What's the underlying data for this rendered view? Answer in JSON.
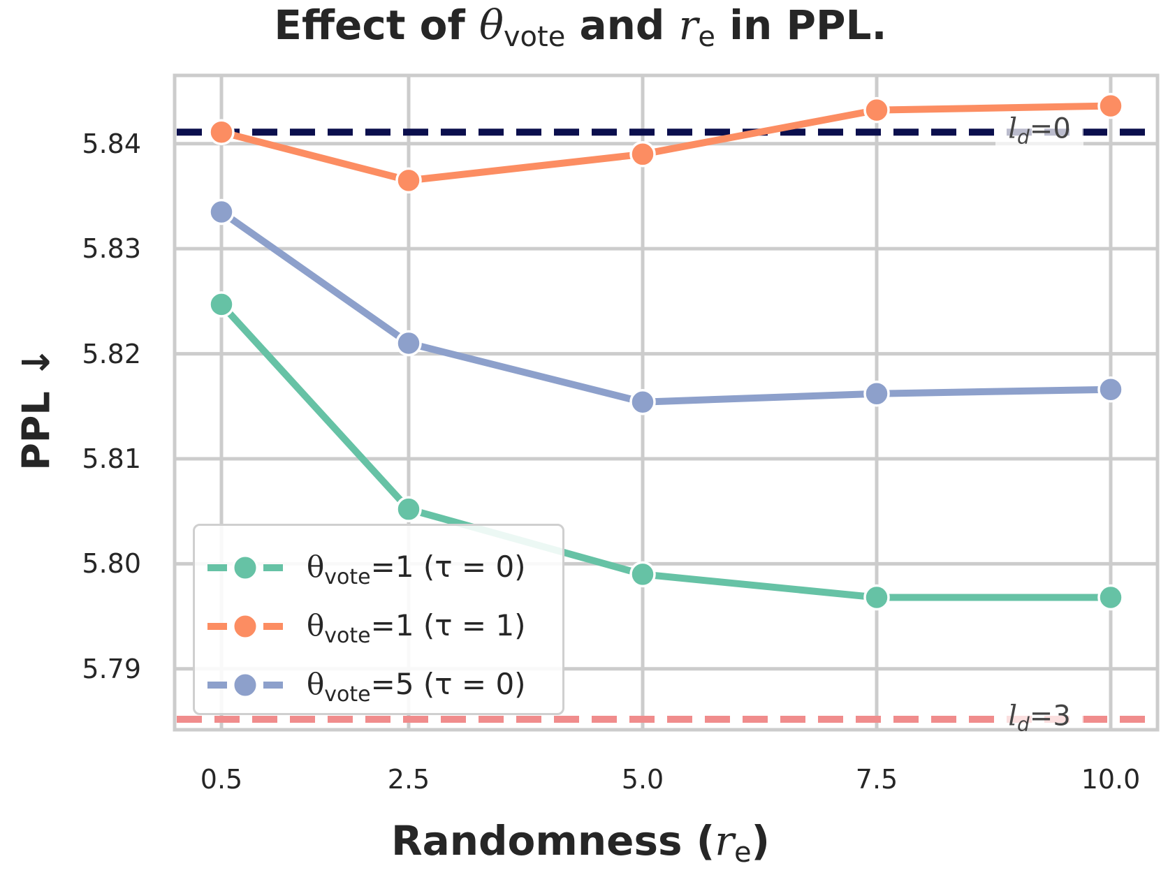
{
  "chart_data": {
    "type": "line",
    "title": {
      "prefix": "Effect of ",
      "theta": "θ",
      "theta_sub": "vote",
      "mid": " and ",
      "r": "r",
      "r_sub": "e",
      "suffix": " in PPL."
    },
    "xlabel": {
      "prefix": "Randomness (",
      "r": "r",
      "r_sub": "e",
      "suffix": ")"
    },
    "ylabel": "PPL ↓",
    "x": [
      0.5,
      2.5,
      5.0,
      7.5,
      10.0
    ],
    "x_tick_labels": [
      "0.5",
      "2.5",
      "5.0",
      "7.5",
      "10.0"
    ],
    "xlim": [
      0.0,
      10.5
    ],
    "y_ticks": [
      5.79,
      5.8,
      5.81,
      5.82,
      5.83,
      5.84
    ],
    "y_tick_labels": [
      "5.79",
      "5.80",
      "5.81",
      "5.82",
      "5.83",
      "5.84"
    ],
    "ylim": [
      5.7842,
      5.8465
    ],
    "grid": true,
    "legend_position": "lower-left",
    "series": [
      {
        "name": "θvote=1 (τ = 0)",
        "label": {
          "theta": "θ",
          "sub": "vote",
          "rest": "=1 (τ = 0)"
        },
        "color": "#66c2a5",
        "values": [
          5.8247,
          5.8052,
          5.799,
          5.7968,
          5.7968
        ]
      },
      {
        "name": "θvote=1 (τ = 1)",
        "label": {
          "theta": "θ",
          "sub": "vote",
          "rest": "=1 (τ = 1)"
        },
        "color": "#fc8d62",
        "values": [
          5.8411,
          5.8365,
          5.839,
          5.8432,
          5.8436
        ]
      },
      {
        "name": "θvote=5 (τ = 0)",
        "label": {
          "theta": "θ",
          "sub": "vote",
          "rest": "=5 (τ = 0)"
        },
        "color": "#8da0cb",
        "values": [
          5.8335,
          5.821,
          5.8154,
          5.8162,
          5.8166
        ]
      }
    ],
    "reference_lines": [
      {
        "name": "ld=0",
        "label": {
          "l": "l",
          "sub": "d",
          "rest": "=0"
        },
        "value": 5.8411,
        "color": "#0b0f4d"
      },
      {
        "name": "ld=3",
        "label": {
          "l": "l",
          "sub": "d",
          "rest": "=3"
        },
        "value": 5.7852,
        "color": "#f08c8c"
      }
    ]
  }
}
